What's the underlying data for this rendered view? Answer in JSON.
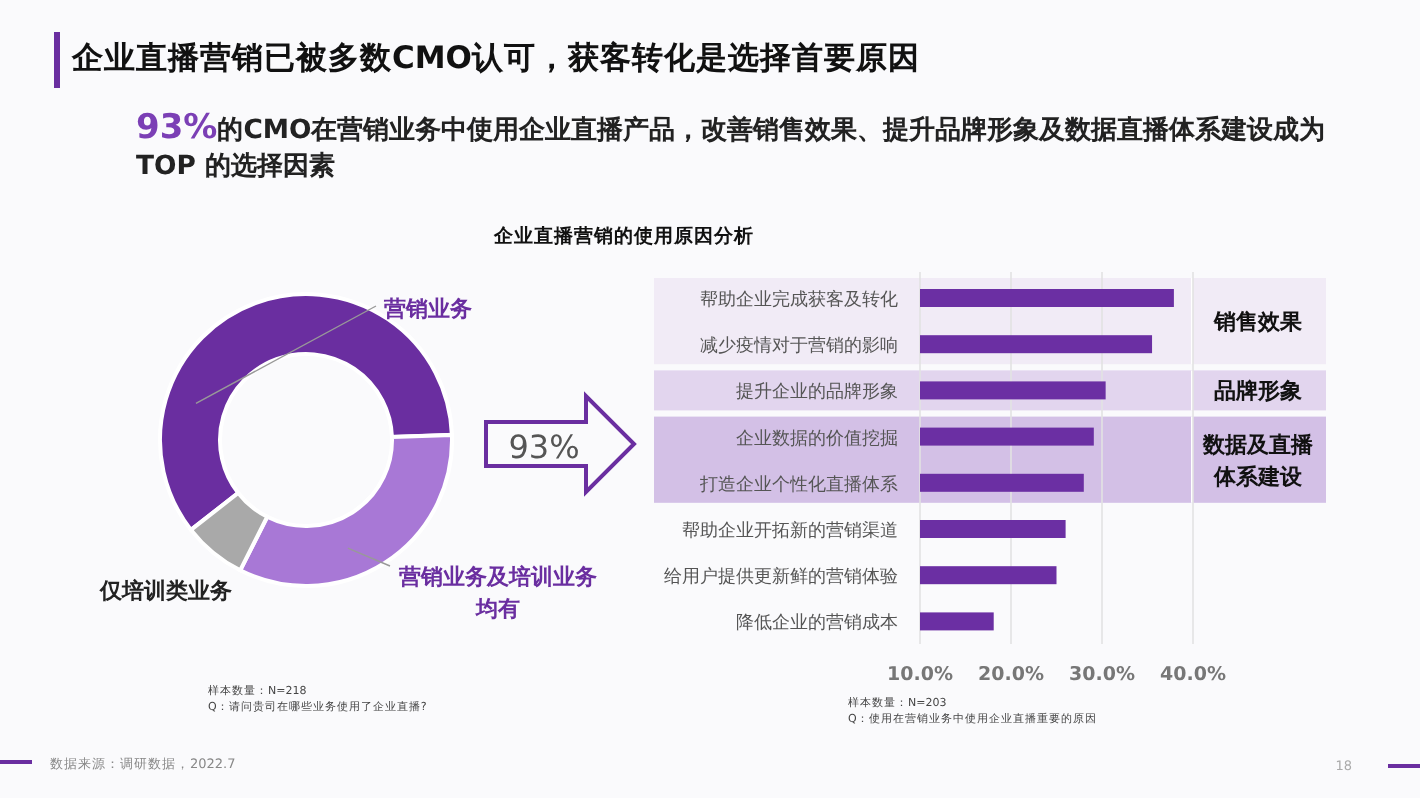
{
  "chart_data": [
    {
      "type": "donut",
      "title": "企业直播营销已被多数CMO认可，获客转化是选择首要原因",
      "subtitle": "93%的CMO在营销业务中使用企业直播产品，改善销售效果、提升品牌形象及数据直播体系建设成为 TOP 的选择因素",
      "categories": [
        "营销业务",
        "营销业务及培训业务均有",
        "仅培训类业务"
      ],
      "values": [
        60,
        33,
        7
      ],
      "colors": [
        "#6a2ea0",
        "#a878d6",
        "#a9a9a9"
      ],
      "annotations": [
        "93%",
        "样本数量：N=218",
        "Q：请问贵司在哪些业务使用了企业直播?",
        "数据来源：调研数据，2022.7",
        "18"
      ]
    },
    {
      "type": "bar",
      "orientation": "horizontal",
      "title": "企业直播营销的使用原因分析",
      "categories": [
        "帮助企业完成获客及转化",
        "减少疫情对于营销的影响",
        "提升企业的品牌形象",
        "企业数据的价值挖掘",
        "打造企业个性化直播体系",
        "帮助企业开拓新的营销渠道",
        "给用户提供更新鲜的营销体验",
        "降低企业的营销成本"
      ],
      "values": [
        37.9,
        35.5,
        30.4,
        29.1,
        28.0,
        26.0,
        25.0,
        18.1
      ],
      "color": "#6b2fa3",
      "xlim": [
        10,
        40
      ],
      "xticks": [
        {
          "value": 10,
          "label": "10.0%"
        },
        {
          "value": 20,
          "label": "20.0%"
        },
        {
          "value": 30,
          "label": "30.0%"
        },
        {
          "value": 40,
          "label": "40.0%"
        }
      ],
      "grid": "x",
      "bands": [
        {
          "axis": "y",
          "from": "帮助企业完成获客及转化",
          "to": "减少疫情对于营销的影响",
          "label": "销售效果",
          "color": "#f1ebf6"
        },
        {
          "axis": "y",
          "from": "提升企业的品牌形象",
          "to": "提升企业的品牌形象",
          "label": "品牌形象",
          "color": "#e2d5ee"
        },
        {
          "axis": "y",
          "from": "企业数据的价值挖掘",
          "to": "打造企业个性化直播体系",
          "label": "数据及直播体系建设",
          "color": "#d3c0e6"
        }
      ],
      "annotations": [
        "样本数量：N=203",
        "Q：使用在营销业务中使用企业直播重要的原因"
      ]
    }
  ]
}
